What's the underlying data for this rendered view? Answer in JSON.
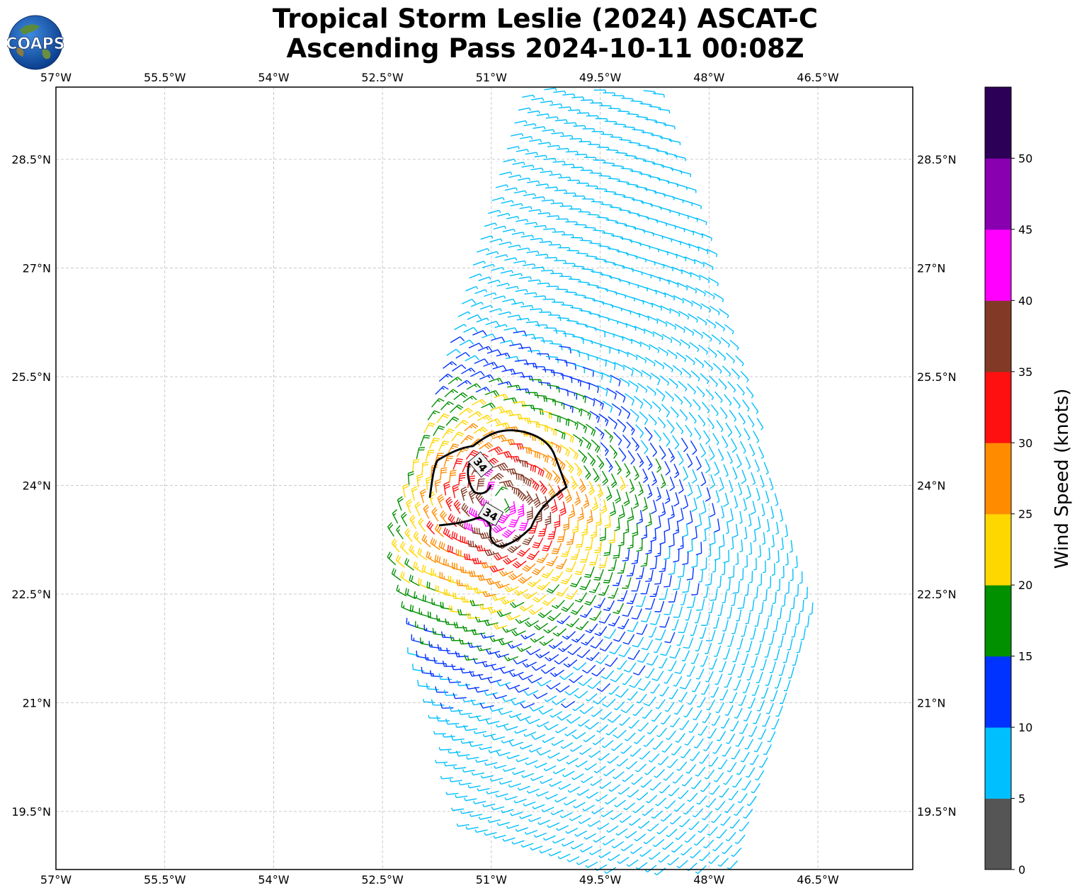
{
  "title_line1": "Tropical Storm Leslie (2024) ASCAT-C",
  "title_line2": "Ascending Pass 2024-10-11 00:08Z",
  "logo_text": "COAPS",
  "map": {
    "lon_range": [
      -57.0,
      -45.1
    ],
    "lat_range": [
      18.5,
      29.5
    ],
    "lon_ticks": [
      "57°W",
      "55.5°W",
      "54°W",
      "52.5°W",
      "51°W",
      "49.5°W",
      "48°W",
      "46.5°W"
    ],
    "lat_ticks": [
      "28.5°N",
      "27°N",
      "25.5°N",
      "24°N",
      "22.5°N",
      "21°N",
      "19.5°N"
    ],
    "grid": true,
    "storm_center": {
      "lon": -50.9,
      "lat": 23.8
    },
    "contour_label": "34",
    "contour_value_knots": 34
  },
  "colorbar": {
    "label": "Wind Speed (knots)",
    "ticks": [
      "0",
      "5",
      "10",
      "15",
      "20",
      "25",
      "30",
      "35",
      "40",
      "45",
      "50"
    ],
    "colors": [
      "#555555",
      "#00bfff",
      "#0033ff",
      "#009000",
      "#ffd700",
      "#ff8c00",
      "#ff1010",
      "#823a26",
      "#ff00ff",
      "#8800b0",
      "#2d0058"
    ]
  }
}
